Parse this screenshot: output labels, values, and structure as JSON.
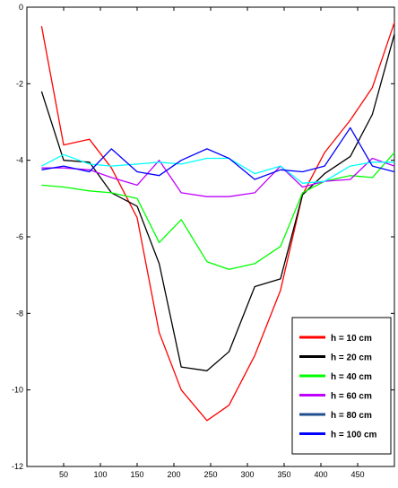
{
  "chart_data": {
    "type": "line",
    "title": "",
    "xlabel": "",
    "ylabel": "",
    "xlim": [
      0,
      500
    ],
    "ylim": [
      -12,
      0
    ],
    "grid": false,
    "legend_position": "bottom-right",
    "x_ticks": [
      50,
      100,
      150,
      200,
      250,
      300,
      350,
      400,
      450
    ],
    "y_ticks": [
      0,
      -2,
      -4,
      -6,
      -8,
      -10,
      -12
    ],
    "x": [
      20,
      50,
      85,
      115,
      150,
      180,
      210,
      245,
      275,
      310,
      345,
      375,
      405,
      440,
      470,
      500
    ],
    "series": [
      {
        "name": "h = 10 cm",
        "color": "#ff0000",
        "values": [
          -0.5,
          -3.6,
          -3.45,
          -4.2,
          -5.5,
          -8.5,
          -10.0,
          -10.8,
          -10.4,
          -9.1,
          -7.4,
          -4.9,
          -3.8,
          -2.95,
          -2.1,
          -0.4
        ]
      },
      {
        "name": "h = 20 cm",
        "color": "#000000",
        "values": [
          -2.2,
          -4.0,
          -4.05,
          -4.85,
          -5.2,
          -6.7,
          -9.4,
          -9.5,
          -9.0,
          -7.3,
          -7.1,
          -4.9,
          -4.35,
          -3.9,
          -2.8,
          -0.7
        ]
      },
      {
        "name": "h = 40 cm",
        "color": "#00ff00",
        "values": [
          -4.65,
          -4.7,
          -4.8,
          -4.85,
          -5.0,
          -6.15,
          -5.55,
          -6.65,
          -6.85,
          -6.7,
          -6.25,
          -4.85,
          -4.55,
          -4.4,
          -4.45,
          -3.8
        ]
      },
      {
        "name": "h = 60 cm",
        "color": "#bf00ff",
        "values": [
          -4.2,
          -4.2,
          -4.25,
          -4.45,
          -4.65,
          -4.0,
          -4.85,
          -4.95,
          -4.95,
          -4.85,
          -4.15,
          -4.7,
          -4.55,
          -4.5,
          -3.95,
          -4.15
        ]
      },
      {
        "name": "h = 80 cm",
        "color": "#00ffff",
        "values": [
          -4.15,
          -3.85,
          -4.1,
          -4.15,
          -4.1,
          -4.05,
          -4.1,
          -3.95,
          -3.95,
          -4.35,
          -4.15,
          -4.6,
          -4.55,
          -4.15,
          -4.05,
          -4.05
        ]
      },
      {
        "name": "h = 100 cm",
        "color": "#0000ff",
        "values": [
          -4.25,
          -4.15,
          -4.3,
          -3.7,
          -4.3,
          -4.4,
          -4.0,
          -3.7,
          -3.95,
          -4.5,
          -4.25,
          -4.3,
          -4.15,
          -3.15,
          -4.15,
          -4.3
        ]
      }
    ],
    "legend_line_colors": [
      "#ff0000",
      "#000000",
      "#00ff00",
      "#bf00ff",
      "#1f4f8f",
      "#0000ff"
    ]
  }
}
